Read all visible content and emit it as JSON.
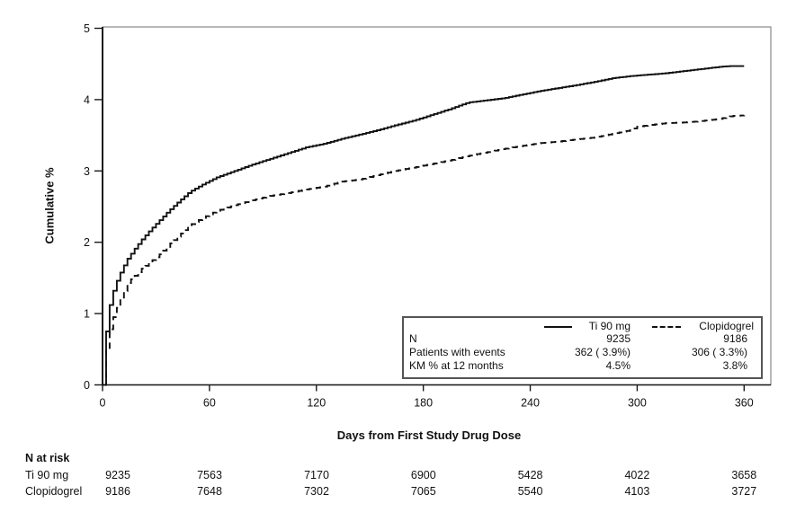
{
  "chart_data": {
    "type": "line",
    "subtype": "kaplan-meier-step",
    "title": "",
    "xlabel": "Days from First Study Drug Dose",
    "ylabel": "Cumulative %",
    "xlim": [
      0,
      360
    ],
    "ylim": [
      0,
      5
    ],
    "xticks": [
      "0",
      "60",
      "120",
      "180",
      "240",
      "300",
      "360"
    ],
    "xtick_values": [
      0,
      60,
      120,
      180,
      240,
      300,
      360
    ],
    "yticks": [
      "0",
      "1",
      "2",
      "3",
      "4",
      "5"
    ],
    "ytick_values": [
      0,
      1,
      2,
      3,
      4,
      5
    ],
    "grid": false,
    "legend_position": "inside-bottom-right-box",
    "line_color": "#111111",
    "series": [
      {
        "name": "Ti 90 mg",
        "style": "solid",
        "points": [
          [
            0,
            0
          ],
          [
            1,
            0.4
          ],
          [
            2,
            0.75
          ],
          [
            3,
            0.98
          ],
          [
            4,
            1.12
          ],
          [
            5,
            1.24
          ],
          [
            7,
            1.4
          ],
          [
            9,
            1.52
          ],
          [
            11,
            1.63
          ],
          [
            14,
            1.77
          ],
          [
            18,
            1.91
          ],
          [
            22,
            2.04
          ],
          [
            27,
            2.18
          ],
          [
            32,
            2.31
          ],
          [
            37,
            2.44
          ],
          [
            43,
            2.58
          ],
          [
            49,
            2.71
          ],
          [
            56,
            2.81
          ],
          [
            64,
            2.91
          ],
          [
            74,
            3.0
          ],
          [
            84,
            3.09
          ],
          [
            94,
            3.17
          ],
          [
            104,
            3.25
          ],
          [
            114,
            3.33
          ],
          [
            124,
            3.38
          ],
          [
            134,
            3.45
          ],
          [
            144,
            3.51
          ],
          [
            154,
            3.57
          ],
          [
            164,
            3.64
          ],
          [
            175,
            3.71
          ],
          [
            185,
            3.79
          ],
          [
            195,
            3.87
          ],
          [
            205,
            3.96
          ],
          [
            215,
            3.99
          ],
          [
            225,
            4.02
          ],
          [
            235,
            4.07
          ],
          [
            245,
            4.12
          ],
          [
            255,
            4.16
          ],
          [
            265,
            4.2
          ],
          [
            276,
            4.25
          ],
          [
            286,
            4.3
          ],
          [
            296,
            4.33
          ],
          [
            306,
            4.35
          ],
          [
            316,
            4.37
          ],
          [
            326,
            4.4
          ],
          [
            336,
            4.43
          ],
          [
            346,
            4.46
          ],
          [
            352,
            4.47
          ],
          [
            360,
            4.47
          ]
        ]
      },
      {
        "name": "Clopidogrel",
        "style": "dashed",
        "points": [
          [
            0,
            0
          ],
          [
            1,
            0.3
          ],
          [
            2,
            0.5
          ],
          [
            3,
            0.66
          ],
          [
            4,
            0.78
          ],
          [
            5,
            0.88
          ],
          [
            7,
            1.02
          ],
          [
            9,
            1.14
          ],
          [
            11,
            1.26
          ],
          [
            14,
            1.43
          ],
          [
            18,
            1.53
          ],
          [
            22,
            1.63
          ],
          [
            27,
            1.73
          ],
          [
            32,
            1.83
          ],
          [
            37,
            1.96
          ],
          [
            43,
            2.1
          ],
          [
            49,
            2.24
          ],
          [
            56,
            2.34
          ],
          [
            64,
            2.44
          ],
          [
            74,
            2.52
          ],
          [
            84,
            2.59
          ],
          [
            94,
            2.65
          ],
          [
            104,
            2.69
          ],
          [
            114,
            2.74
          ],
          [
            124,
            2.78
          ],
          [
            134,
            2.85
          ],
          [
            144,
            2.88
          ],
          [
            154,
            2.94
          ],
          [
            164,
            3.0
          ],
          [
            175,
            3.05
          ],
          [
            185,
            3.1
          ],
          [
            195,
            3.15
          ],
          [
            205,
            3.21
          ],
          [
            215,
            3.26
          ],
          [
            225,
            3.31
          ],
          [
            235,
            3.35
          ],
          [
            245,
            3.39
          ],
          [
            255,
            3.41
          ],
          [
            265,
            3.44
          ],
          [
            276,
            3.47
          ],
          [
            286,
            3.52
          ],
          [
            296,
            3.57
          ],
          [
            300,
            3.62
          ],
          [
            306,
            3.64
          ],
          [
            316,
            3.67
          ],
          [
            326,
            3.68
          ],
          [
            336,
            3.7
          ],
          [
            346,
            3.73
          ],
          [
            353,
            3.77
          ],
          [
            360,
            3.78
          ]
        ]
      }
    ]
  },
  "legend": {
    "series1_name": "Ti 90 mg",
    "series2_name": "Clopidogrel",
    "row_n_label": "N",
    "row_n_s1": "9235",
    "row_n_s2": "9186",
    "row_events_label": "Patients with events",
    "row_events_s1": "362 ( 3.9%)",
    "row_events_s2": "306 ( 3.3%)",
    "row_km_label": "KM % at 12 months",
    "row_km_s1": "4.5%",
    "row_km_s2": "3.8%"
  },
  "at_risk": {
    "title": "N at risk",
    "rows": [
      {
        "label": "Ti 90 mg",
        "values": [
          "9235",
          "7563",
          "7170",
          "6900",
          "5428",
          "4022",
          "3658"
        ]
      },
      {
        "label": "Clopidogrel",
        "values": [
          "9186",
          "7648",
          "7302",
          "7065",
          "5540",
          "4103",
          "3727"
        ]
      }
    ]
  }
}
